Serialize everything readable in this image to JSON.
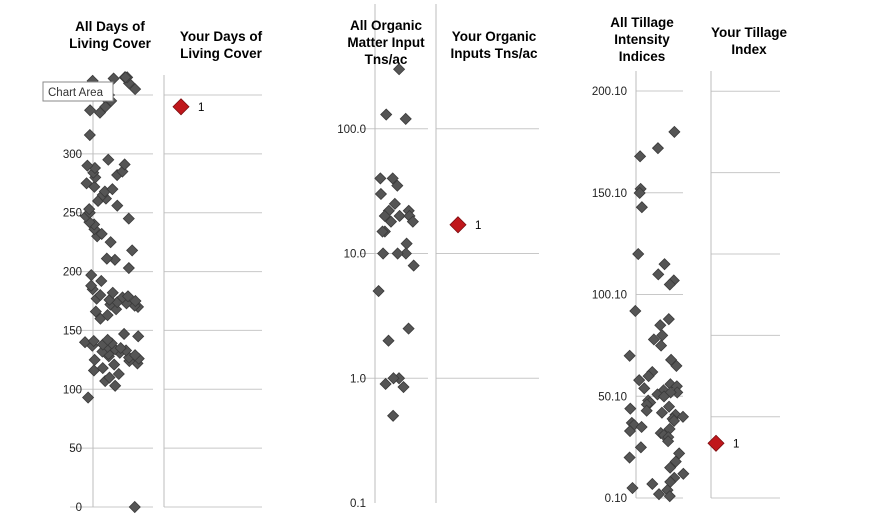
{
  "tooltip": "Chart Area",
  "colors": {
    "all_marker": "#555555",
    "your_marker": "#c0171b",
    "grid": "#c8c8c8"
  },
  "chart_data": [
    {
      "type": "scatter",
      "id": "living",
      "title_lines": [
        "All Days of",
        "Living Cover"
      ],
      "scale": "linear",
      "ylim": [
        0,
        350
      ],
      "ticks": [
        0,
        50,
        100,
        150,
        200,
        250,
        300
      ],
      "tick_labels": [
        "0",
        "50",
        "100",
        "150",
        "200",
        "250",
        "300"
      ],
      "grid_values": [
        0,
        50,
        100,
        150,
        200,
        250,
        300,
        350
      ],
      "jitter": 27,
      "values": [
        0,
        93,
        103,
        107,
        110,
        113,
        116,
        118,
        121,
        122,
        124,
        125,
        126,
        127,
        128,
        129,
        130,
        131,
        132,
        133,
        134,
        135,
        136,
        137,
        138,
        139,
        140,
        141,
        142,
        145,
        147,
        160,
        163,
        166,
        168,
        170,
        171,
        172,
        173,
        174,
        175,
        176,
        177,
        178,
        179,
        180,
        182,
        185,
        188,
        192,
        197,
        203,
        210,
        211,
        218,
        225,
        230,
        232,
        236,
        240,
        242,
        245,
        247,
        250,
        253,
        256,
        260,
        262,
        265,
        268,
        270,
        272,
        275,
        280,
        282,
        284,
        285,
        288,
        290,
        291,
        295,
        316,
        335,
        337,
        340,
        345,
        348,
        350,
        355,
        360,
        362,
        364,
        365,
        365,
        365
      ]
    },
    {
      "type": "scatter",
      "id": "your_living",
      "title_lines": [
        "Your Days of",
        "Living Cover"
      ],
      "scale": "linear",
      "ylim": [
        0,
        350
      ],
      "grid_values": [
        0,
        50,
        100,
        150,
        200,
        250,
        300,
        350
      ],
      "point": {
        "y": 340,
        "label": "1"
      }
    },
    {
      "type": "scatter",
      "id": "organic",
      "title_lines": [
        "All Organic",
        "Matter Input",
        "Tns/ac"
      ],
      "scale": "log",
      "ylim": [
        0.1,
        1000
      ],
      "ticks": [
        0.1,
        1,
        10,
        100
      ],
      "tick_labels": [
        "0.1",
        "1.0",
        "10.0",
        "100.0"
      ],
      "grid_values": [
        1,
        10,
        100
      ],
      "jitter": 20,
      "values": [
        300,
        130,
        120,
        40,
        40,
        35,
        30,
        25,
        22,
        22,
        20,
        20,
        20,
        18,
        18,
        15,
        15,
        12,
        10,
        10,
        10,
        8,
        5,
        2.5,
        2.0,
        1.0,
        1.0,
        0.9,
        0.85,
        0.5
      ]
    },
    {
      "type": "scatter",
      "id": "your_organic",
      "title_lines": [
        "Your Organic",
        "Inputs Tns/ac"
      ],
      "scale": "log",
      "ylim": [
        0.1,
        1000
      ],
      "grid_values": [
        1,
        10,
        100
      ],
      "point": {
        "y": 17,
        "label": "1"
      }
    },
    {
      "type": "scatter",
      "id": "tillage",
      "title_lines": [
        "All Tillage",
        "Intensity",
        "Indices"
      ],
      "scale": "linear",
      "ylim": [
        0.1,
        200.1
      ],
      "ticks": [
        0.1,
        50.1,
        100.1,
        150.1,
        200.1
      ],
      "tick_labels": [
        "0.10",
        "50.10",
        "100.10",
        "150.10",
        "200.10"
      ],
      "grid_values": [
        0.1,
        50.1,
        100.1,
        150.1,
        200.1
      ],
      "jitter": 28,
      "values": [
        180,
        172,
        168,
        152,
        150,
        143,
        120,
        115,
        110,
        107,
        105,
        92,
        88,
        85,
        80,
        78,
        75,
        70,
        68,
        65,
        62,
        60,
        58,
        56,
        55,
        54,
        53,
        52,
        52,
        51,
        50,
        48,
        47,
        46,
        45,
        44,
        43,
        42,
        41,
        40,
        39,
        38,
        37,
        36,
        35,
        34,
        33,
        32,
        31,
        30,
        28,
        25,
        22,
        20,
        18,
        15,
        12,
        10,
        8,
        7,
        5,
        4,
        2,
        1
      ]
    },
    {
      "type": "scatter",
      "id": "your_tillage",
      "title_lines": [
        "Your Tillage",
        "Index"
      ],
      "scale": "linear",
      "ylim": [
        0.1,
        200.1
      ],
      "grid_values": [
        0.1,
        40,
        80,
        120,
        160,
        200
      ],
      "point": {
        "y": 27,
        "label": "1"
      }
    }
  ]
}
